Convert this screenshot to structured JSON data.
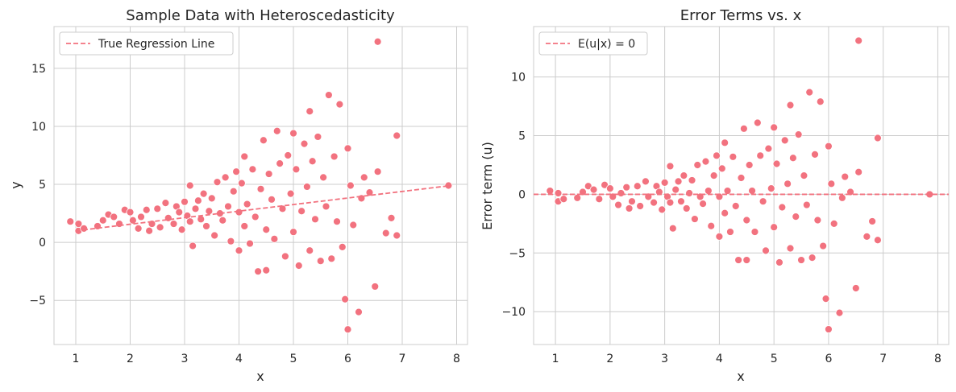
{
  "colors": {
    "points": "#f2727f",
    "point_edge": "#ffffff",
    "line": "#f2727f",
    "grid": "#cccccc",
    "text": "#262626"
  },
  "chart_data": [
    {
      "type": "scatter",
      "title": "Sample Data with Heteroscedasticity",
      "xlabel": "x",
      "ylabel": "y",
      "xlim": [
        0.6,
        8.2
      ],
      "ylim": [
        -8.8,
        18.6
      ],
      "xticks": [
        1,
        2,
        3,
        4,
        5,
        6,
        7,
        8
      ],
      "yticks": [
        -5,
        0,
        5,
        10,
        15
      ],
      "xtick_labels": [
        "1",
        "2",
        "3",
        "4",
        "5",
        "6",
        "7",
        "8"
      ],
      "ytick_labels": [
        "−5",
        "0",
        "5",
        "10",
        "15"
      ],
      "grid": true,
      "legend": {
        "position": "top-left",
        "entries": [
          "True Regression Line"
        ]
      },
      "line": {
        "name": "True Regression Line",
        "style": "dashed",
        "x": [
          1,
          7.9
        ],
        "y": [
          1.0,
          4.9
        ]
      },
      "points": [
        [
          0.9,
          1.8
        ],
        [
          1.05,
          1.0
        ],
        [
          1.05,
          1.6
        ],
        [
          1.15,
          1.2
        ],
        [
          1.4,
          1.4
        ],
        [
          1.5,
          1.9
        ],
        [
          1.6,
          2.4
        ],
        [
          1.7,
          2.2
        ],
        [
          1.8,
          1.6
        ],
        [
          1.9,
          2.8
        ],
        [
          2.0,
          2.6
        ],
        [
          2.05,
          1.9
        ],
        [
          2.15,
          1.2
        ],
        [
          2.2,
          2.2
        ],
        [
          2.3,
          2.8
        ],
        [
          2.35,
          1.0
        ],
        [
          2.4,
          1.6
        ],
        [
          2.5,
          2.9
        ],
        [
          2.55,
          1.3
        ],
        [
          2.65,
          3.4
        ],
        [
          2.7,
          2.1
        ],
        [
          2.8,
          1.6
        ],
        [
          2.85,
          3.1
        ],
        [
          2.9,
          2.6
        ],
        [
          2.95,
          1.1
        ],
        [
          3.0,
          3.5
        ],
        [
          3.05,
          2.3
        ],
        [
          3.1,
          1.8
        ],
        [
          3.1,
          4.9
        ],
        [
          3.15,
          -0.3
        ],
        [
          3.2,
          2.9
        ],
        [
          3.25,
          3.6
        ],
        [
          3.3,
          2.0
        ],
        [
          3.35,
          4.2
        ],
        [
          3.4,
          1.4
        ],
        [
          3.45,
          2.7
        ],
        [
          3.5,
          3.8
        ],
        [
          3.55,
          0.6
        ],
        [
          3.6,
          5.2
        ],
        [
          3.65,
          2.5
        ],
        [
          3.7,
          1.9
        ],
        [
          3.75,
          5.6
        ],
        [
          3.8,
          3.1
        ],
        [
          3.85,
          0.1
        ],
        [
          3.9,
          4.4
        ],
        [
          3.95,
          6.1
        ],
        [
          4.0,
          2.6
        ],
        [
          4.0,
          -0.7
        ],
        [
          4.05,
          5.1
        ],
        [
          4.1,
          1.4
        ],
        [
          4.1,
          7.4
        ],
        [
          4.15,
          3.3
        ],
        [
          4.2,
          -0.1
        ],
        [
          4.25,
          6.3
        ],
        [
          4.3,
          2.2
        ],
        [
          4.35,
          -2.5
        ],
        [
          4.4,
          4.6
        ],
        [
          4.45,
          8.8
        ],
        [
          4.5,
          1.1
        ],
        [
          4.5,
          -2.4
        ],
        [
          4.55,
          5.9
        ],
        [
          4.6,
          3.7
        ],
        [
          4.65,
          0.3
        ],
        [
          4.7,
          9.6
        ],
        [
          4.75,
          6.8
        ],
        [
          4.8,
          2.9
        ],
        [
          4.85,
          -1.2
        ],
        [
          4.9,
          7.5
        ],
        [
          4.95,
          4.2
        ],
        [
          5.0,
          0.9
        ],
        [
          5.0,
          9.4
        ],
        [
          5.05,
          6.3
        ],
        [
          5.1,
          -2.0
        ],
        [
          5.15,
          2.7
        ],
        [
          5.2,
          8.5
        ],
        [
          5.25,
          4.8
        ],
        [
          5.3,
          11.3
        ],
        [
          5.3,
          -0.7
        ],
        [
          5.35,
          7.0
        ],
        [
          5.4,
          2.0
        ],
        [
          5.45,
          9.1
        ],
        [
          5.5,
          -1.6
        ],
        [
          5.55,
          5.6
        ],
        [
          5.6,
          3.1
        ],
        [
          5.65,
          12.7
        ],
        [
          5.7,
          -1.4
        ],
        [
          5.75,
          7.4
        ],
        [
          5.8,
          1.8
        ],
        [
          5.85,
          11.9
        ],
        [
          5.9,
          -0.4
        ],
        [
          5.95,
          -4.9
        ],
        [
          6.0,
          8.1
        ],
        [
          6.0,
          -7.5
        ],
        [
          6.05,
          4.9
        ],
        [
          6.1,
          1.5
        ],
        [
          6.2,
          -6.0
        ],
        [
          6.25,
          3.8
        ],
        [
          6.3,
          5.6
        ],
        [
          6.4,
          4.3
        ],
        [
          6.5,
          -3.8
        ],
        [
          6.55,
          6.1
        ],
        [
          6.55,
          17.3
        ],
        [
          6.7,
          0.8
        ],
        [
          6.8,
          2.1
        ],
        [
          6.9,
          0.6
        ],
        [
          6.9,
          9.2
        ],
        [
          7.85,
          4.9
        ]
      ]
    },
    {
      "type": "scatter",
      "title": "Error Terms vs. x",
      "xlabel": "x",
      "ylabel": "Error term (u)",
      "xlim": [
        0.6,
        8.2
      ],
      "ylim": [
        -12.8,
        14.3
      ],
      "xticks": [
        1,
        2,
        3,
        4,
        5,
        6,
        7,
        8
      ],
      "yticks": [
        -10,
        -5,
        0,
        5,
        10
      ],
      "xtick_labels": [
        "1",
        "2",
        "3",
        "4",
        "5",
        "6",
        "7",
        "8"
      ],
      "ytick_labels": [
        "−10",
        "−5",
        "0",
        "5",
        "10"
      ],
      "grid": true,
      "legend": {
        "position": "top-left",
        "entries": [
          "E(u|x) = 0"
        ]
      },
      "line": {
        "name": "E(u|x) = 0",
        "style": "dashed",
        "x": [
          0.6,
          8.2
        ],
        "y": [
          0,
          0
        ]
      },
      "points": [
        [
          0.9,
          0.3
        ],
        [
          1.05,
          -0.6
        ],
        [
          1.05,
          0.1
        ],
        [
          1.15,
          -0.4
        ],
        [
          1.4,
          -0.3
        ],
        [
          1.5,
          0.2
        ],
        [
          1.6,
          0.7
        ],
        [
          1.7,
          0.4
        ],
        [
          1.8,
          -0.4
        ],
        [
          1.9,
          0.8
        ],
        [
          2.0,
          0.5
        ],
        [
          2.05,
          -0.2
        ],
        [
          2.15,
          -0.9
        ],
        [
          2.2,
          0.1
        ],
        [
          2.3,
          0.6
        ],
        [
          2.35,
          -1.2
        ],
        [
          2.4,
          -0.6
        ],
        [
          2.5,
          0.7
        ],
        [
          2.55,
          -1.0
        ],
        [
          2.65,
          1.1
        ],
        [
          2.7,
          -0.2
        ],
        [
          2.8,
          -0.7
        ],
        [
          2.85,
          0.7
        ],
        [
          2.9,
          0.2
        ],
        [
          2.95,
          -1.3
        ],
        [
          3.0,
          1.0
        ],
        [
          3.05,
          -0.2
        ],
        [
          3.1,
          -0.7
        ],
        [
          3.1,
          2.4
        ],
        [
          3.15,
          -2.9
        ],
        [
          3.2,
          0.4
        ],
        [
          3.25,
          1.1
        ],
        [
          3.3,
          -0.6
        ],
        [
          3.35,
          1.6
        ],
        [
          3.4,
          -1.2
        ],
        [
          3.45,
          0.1
        ],
        [
          3.5,
          1.2
        ],
        [
          3.55,
          -2.1
        ],
        [
          3.6,
          2.5
        ],
        [
          3.65,
          -0.2
        ],
        [
          3.7,
          -0.8
        ],
        [
          3.75,
          2.8
        ],
        [
          3.8,
          0.3
        ],
        [
          3.85,
          -2.7
        ],
        [
          3.9,
          1.6
        ],
        [
          3.95,
          3.3
        ],
        [
          4.0,
          -0.2
        ],
        [
          4.0,
          -3.6
        ],
        [
          4.05,
          2.2
        ],
        [
          4.1,
          -1.6
        ],
        [
          4.1,
          4.4
        ],
        [
          4.15,
          0.3
        ],
        [
          4.2,
          -3.2
        ],
        [
          4.25,
          3.2
        ],
        [
          4.3,
          -1.0
        ],
        [
          4.35,
          -5.6
        ],
        [
          4.4,
          1.4
        ],
        [
          4.45,
          5.6
        ],
        [
          4.5,
          -2.2
        ],
        [
          4.5,
          -5.6
        ],
        [
          4.55,
          2.5
        ],
        [
          4.6,
          0.3
        ],
        [
          4.65,
          -3.2
        ],
        [
          4.7,
          6.1
        ],
        [
          4.75,
          3.3
        ],
        [
          4.8,
          -0.6
        ],
        [
          4.85,
          -4.8
        ],
        [
          4.9,
          3.9
        ],
        [
          4.95,
          0.5
        ],
        [
          5.0,
          -2.8
        ],
        [
          5.0,
          5.7
        ],
        [
          5.05,
          2.6
        ],
        [
          5.1,
          -5.8
        ],
        [
          5.15,
          -1.1
        ],
        [
          5.2,
          4.6
        ],
        [
          5.25,
          0.9
        ],
        [
          5.3,
          7.6
        ],
        [
          5.3,
          -4.6
        ],
        [
          5.35,
          3.1
        ],
        [
          5.4,
          -1.9
        ],
        [
          5.45,
          5.1
        ],
        [
          5.5,
          -5.6
        ],
        [
          5.55,
          1.6
        ],
        [
          5.6,
          -0.9
        ],
        [
          5.65,
          8.7
        ],
        [
          5.7,
          -5.4
        ],
        [
          5.75,
          3.4
        ],
        [
          5.8,
          -2.2
        ],
        [
          5.85,
          7.9
        ],
        [
          5.9,
          -4.4
        ],
        [
          5.95,
          -8.9
        ],
        [
          6.0,
          4.1
        ],
        [
          6.0,
          -11.5
        ],
        [
          6.05,
          0.9
        ],
        [
          6.1,
          -2.5
        ],
        [
          6.2,
          -10.1
        ],
        [
          6.25,
          -0.3
        ],
        [
          6.3,
          1.5
        ],
        [
          6.4,
          0.2
        ],
        [
          6.5,
          -8.0
        ],
        [
          6.55,
          1.9
        ],
        [
          6.55,
          13.1
        ],
        [
          6.7,
          -3.6
        ],
        [
          6.8,
          -2.3
        ],
        [
          6.9,
          -3.9
        ],
        [
          6.9,
          4.8
        ],
        [
          7.85,
          0.0
        ]
      ]
    }
  ]
}
